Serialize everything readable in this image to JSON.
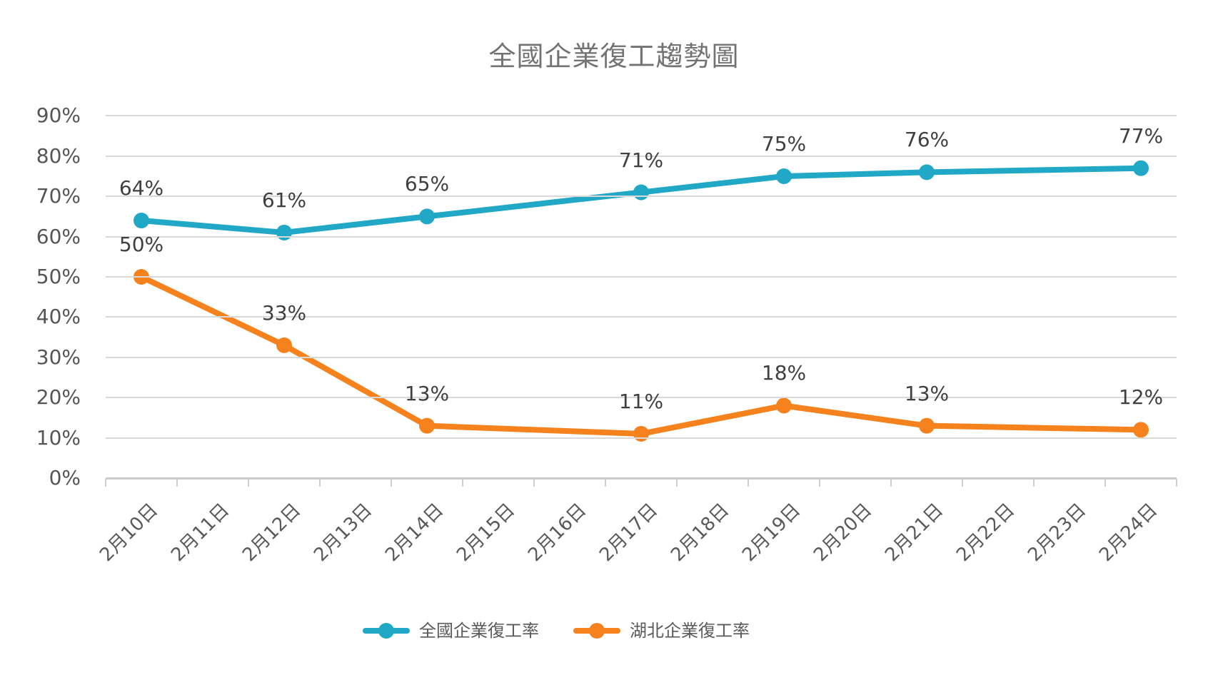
{
  "chart_data": {
    "type": "line",
    "title": "全國企業復工趨勢圖",
    "categories": [
      "2月10日",
      "2月11日",
      "2月12日",
      "2月13日",
      "2月14日",
      "2月15日",
      "2月16日",
      "2月17日",
      "2月18日",
      "2月19日",
      "2月20日",
      "2月21日",
      "2月22日",
      "2月23日",
      "2月24日"
    ],
    "series": [
      {
        "name": "全國企業復工率",
        "color": "#21A8C6",
        "points": [
          {
            "category": "2月10日",
            "category_index": 0,
            "value": 64,
            "label": "64%"
          },
          {
            "category": "2月12日",
            "category_index": 2,
            "value": 61,
            "label": "61%"
          },
          {
            "category": "2月14日",
            "category_index": 4,
            "value": 65,
            "label": "65%"
          },
          {
            "category": "2月17日",
            "category_index": 7,
            "value": 71,
            "label": "71%"
          },
          {
            "category": "2月19日",
            "category_index": 9,
            "value": 75,
            "label": "75%"
          },
          {
            "category": "2月21日",
            "category_index": 11,
            "value": 76,
            "label": "76%"
          },
          {
            "category": "2月24日",
            "category_index": 14,
            "value": 77,
            "label": "77%"
          }
        ]
      },
      {
        "name": "湖北企業復工率",
        "color": "#F5821D",
        "points": [
          {
            "category": "2月10日",
            "category_index": 0,
            "value": 50,
            "label": "50%"
          },
          {
            "category": "2月12日",
            "category_index": 2,
            "value": 33,
            "label": "33%"
          },
          {
            "category": "2月14日",
            "category_index": 4,
            "value": 13,
            "label": "13%"
          },
          {
            "category": "2月17日",
            "category_index": 7,
            "value": 11,
            "label": "11%"
          },
          {
            "category": "2月19日",
            "category_index": 9,
            "value": 18,
            "label": "18%"
          },
          {
            "category": "2月21日",
            "category_index": 11,
            "value": 13,
            "label": "13%"
          },
          {
            "category": "2月24日",
            "category_index": 14,
            "value": 12,
            "label": "12%"
          }
        ]
      }
    ],
    "xlabel": "",
    "ylabel": "",
    "ylim": [
      0,
      90
    ],
    "y_tick_step": 10,
    "y_tick_labels": [
      "0%",
      "10%",
      "20%",
      "30%",
      "40%",
      "50%",
      "60%",
      "70%",
      "80%",
      "90%"
    ],
    "grid": true,
    "legend_position": "bottom",
    "colors": {
      "gridline": "#d9d9d9",
      "axis_line": "#cccccc",
      "title_text": "#737373",
      "axis_text": "#595959",
      "data_label_text": "#3f3f3f",
      "background": "#ffffff"
    }
  }
}
